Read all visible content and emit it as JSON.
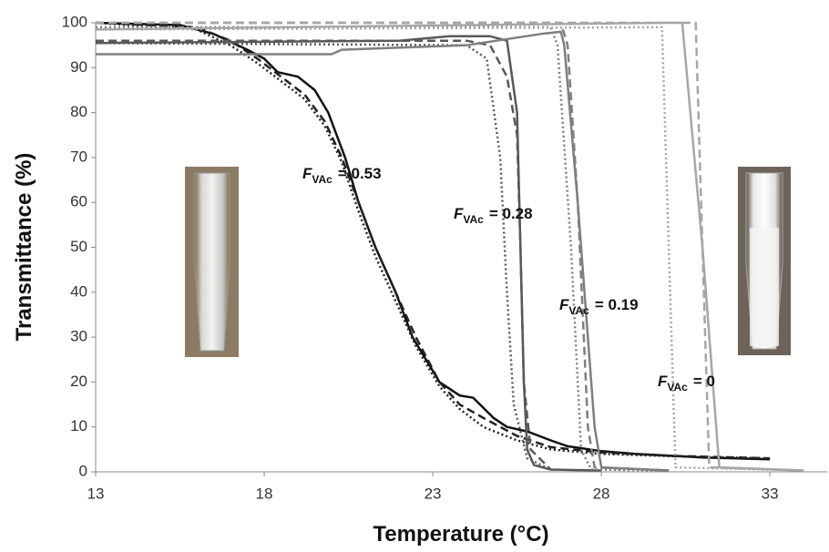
{
  "chart_data": {
    "type": "line",
    "xlabel": "Temperature (°C)",
    "ylabel": "Transmittance (%)",
    "xlim": [
      13,
      34.7
    ],
    "ylim": [
      0,
      100
    ],
    "xticks": [
      13,
      18,
      23,
      28,
      33
    ],
    "yticks": [
      0,
      10,
      20,
      30,
      40,
      50,
      60,
      70,
      80,
      90,
      100
    ],
    "grid": false,
    "series": [
      {
        "color": "#111111",
        "dash": "solid",
        "x": [
          13,
          15.5,
          16.5,
          17.5,
          18,
          18.4,
          19,
          19.5,
          19.9,
          20.4,
          20.8,
          21.3,
          21.9,
          22.4,
          23.2,
          23.8,
          24.2,
          24.8,
          25.2,
          25.8,
          26.5,
          27,
          28,
          29,
          30,
          31,
          32,
          33
        ],
        "values": [
          100,
          99.5,
          97.5,
          94,
          92,
          89,
          88,
          85,
          80,
          70,
          60,
          50,
          40,
          30,
          20,
          17,
          16.5,
          12,
          10,
          9,
          7,
          5.7,
          4.6,
          4,
          3.6,
          3.2,
          3,
          2.8
        ]
      },
      {
        "color": "#222222",
        "dash": "dashed",
        "x": [
          13,
          16,
          17,
          17.8,
          18.5,
          19.2,
          19.8,
          20.3,
          20.8,
          21.3,
          21.9,
          22.5,
          23.2,
          23.8,
          24.5,
          25.5,
          26.5,
          28,
          30,
          33
        ],
        "values": [
          100,
          99,
          96,
          92,
          88,
          84,
          78,
          70,
          60,
          50,
          40,
          30,
          20,
          15,
          12,
          8,
          5.5,
          4.3,
          3.6,
          3
        ]
      },
      {
        "color": "#222222",
        "dash": "dotted",
        "x": [
          13,
          16,
          17,
          17.8,
          18.5,
          19.2,
          19.8,
          20.3,
          20.8,
          21.3,
          21.9,
          22.5,
          23.2,
          23.8,
          24.5,
          25.5,
          26.5,
          28,
          30,
          33
        ],
        "values": [
          100,
          98.5,
          95,
          91,
          87,
          83,
          77,
          69,
          58,
          48,
          38,
          28,
          19,
          14,
          10,
          7,
          5,
          4,
          3.5,
          3
        ]
      },
      {
        "color": "#595959",
        "dash": "solid",
        "x": [
          13,
          22,
          23.5,
          24.7,
          25.2,
          25.5,
          25.6,
          25.7,
          25.8,
          26,
          26.5,
          28
        ],
        "values": [
          95.5,
          96,
          97,
          97,
          96,
          80,
          50,
          20,
          5,
          1.5,
          0.5,
          0.3
        ]
      },
      {
        "color": "#595959",
        "dash": "dashed",
        "x": [
          13,
          24,
          24.7,
          25.2,
          25.5,
          25.6,
          25.7,
          25.9,
          26.5
        ],
        "values": [
          96,
          96,
          95,
          88,
          75,
          50,
          20,
          5,
          0.5
        ]
      },
      {
        "color": "#595959",
        "dash": "dotted",
        "x": [
          13,
          24,
          24.6,
          25,
          25.2,
          25.4,
          25.8,
          26.5
        ],
        "values": [
          95.5,
          95,
          92,
          70,
          40,
          15,
          3,
          0.5
        ]
      },
      {
        "color": "#7f7f7f",
        "dash": "solid",
        "x": [
          13,
          20,
          20.3,
          24,
          26.2,
          26.8,
          26.9,
          27.3,
          27.8,
          28,
          30
        ],
        "values": [
          93,
          93,
          94,
          95,
          97.5,
          98,
          95,
          60,
          10,
          1,
          0.3
        ]
      },
      {
        "color": "#7f7f7f",
        "dash": "dashed",
        "x": [
          13,
          26.8,
          27,
          27.3,
          27.6,
          27.8,
          30
        ],
        "values": [
          100,
          100,
          95,
          60,
          10,
          1,
          0.3
        ]
      },
      {
        "color": "#7f7f7f",
        "dash": "dotted",
        "x": [
          13,
          26.5,
          26.7,
          27.1,
          27.4,
          27.7,
          30
        ],
        "values": [
          99,
          99,
          95,
          50,
          5,
          0.5,
          0.3
        ]
      },
      {
        "color": "#a6a6a6",
        "dash": "solid",
        "x": [
          13,
          30,
          30.4,
          31,
          31.5,
          34
        ],
        "values": [
          98.5,
          100,
          100,
          50,
          1,
          0.3
        ]
      },
      {
        "color": "#a6a6a6",
        "dash": "dashed",
        "x": [
          13,
          30.8,
          31,
          31.2,
          34
        ],
        "values": [
          100,
          100,
          50,
          1,
          0.3
        ]
      },
      {
        "color": "#a6a6a6",
        "dash": "dotted",
        "x": [
          13,
          29.8,
          30,
          30.2,
          34
        ],
        "values": [
          98.5,
          99,
          50,
          1,
          0.3
        ]
      }
    ],
    "annotations": [
      {
        "main": "F",
        "sub": "VAc",
        "rest": "= 0.53"
      },
      {
        "main": "F",
        "sub": "VAc",
        "rest": "= 0.28"
      },
      {
        "main": "F",
        "sub": "VAc",
        "rest": "= 0.19"
      },
      {
        "main": "F",
        "sub": "VAc",
        "rest": "= 0"
      }
    ]
  }
}
